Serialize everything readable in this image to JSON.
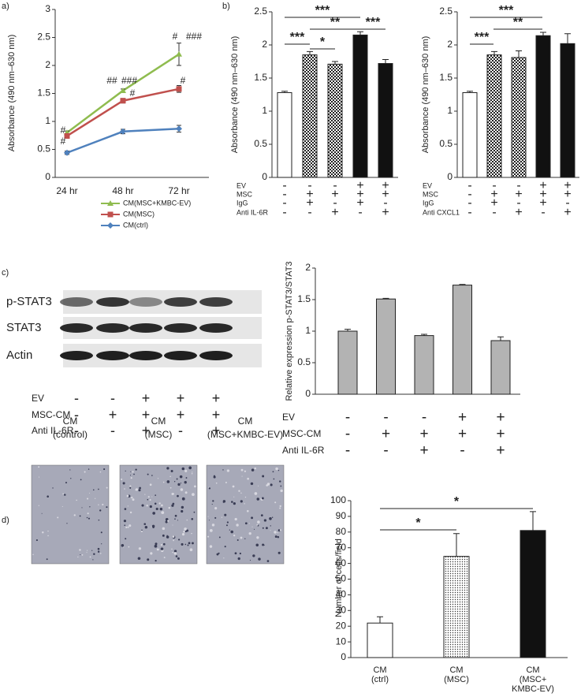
{
  "panels": [
    "a)",
    "b)",
    "c)",
    "d)"
  ],
  "chart_data": [
    {
      "type": "line",
      "categories": [
        "24 hr",
        "48 hr",
        "72 hr"
      ],
      "y_label": "Absorbance (490 nm–630 nm)",
      "ylim": [
        0,
        3
      ],
      "yticks": [
        0,
        0.5,
        1,
        1.5,
        2,
        2.5,
        3
      ],
      "series": [
        {
          "name": "CM(MSC+KMBC-EV)",
          "color": "#8fbc4f",
          "marker": "triangle",
          "values": [
            0.8,
            1.55,
            2.2
          ],
          "errors": [
            0.03,
            0.03,
            0.2
          ]
        },
        {
          "name": "CM(MSC)",
          "color": "#c0504d",
          "marker": "square",
          "values": [
            0.74,
            1.37,
            1.58
          ],
          "errors": [
            0.03,
            0.04,
            0.06
          ]
        },
        {
          "name": "CM(ctrl)",
          "color": "#4f81bd",
          "marker": "diamond",
          "values": [
            0.44,
            0.82,
            0.87
          ],
          "errors": [
            0.03,
            0.04,
            0.06
          ]
        }
      ],
      "annotations": [
        "#",
        "#",
        "##",
        "###",
        "#",
        "#",
        "###",
        "#"
      ]
    },
    {
      "type": "bar",
      "y_label": "Absorbance (490 nm–630 nm)",
      "ylim": [
        0,
        2.5
      ],
      "yticks": [
        0,
        0.5,
        1,
        1.5,
        2,
        2.5
      ],
      "values": [
        1.28,
        1.85,
        1.71,
        2.15,
        1.72
      ],
      "errors": [
        0.02,
        0.05,
        0.04,
        0.05,
        0.06
      ],
      "fills": [
        "white",
        "checker",
        "checker",
        "black",
        "black"
      ],
      "annotations": [
        "***",
        "**",
        "***",
        "***",
        "*"
      ],
      "conditions": [
        {
          "name": "EV",
          "signs": [
            "-",
            "-",
            "-",
            "+",
            "+"
          ]
        },
        {
          "name": "MSC",
          "signs": [
            "-",
            "+",
            "+",
            "+",
            "+"
          ]
        },
        {
          "name": "IgG",
          "signs": [
            "-",
            "+",
            "-",
            "+",
            "-"
          ]
        },
        {
          "name": "Anti IL-6R",
          "signs": [
            "-",
            "-",
            "+",
            "-",
            "+"
          ]
        }
      ]
    },
    {
      "type": "bar",
      "y_label": "Absorbance (490 nm–630 nm)",
      "ylim": [
        0,
        2.5
      ],
      "yticks": [
        0,
        0.5,
        1,
        1.5,
        2,
        2.5
      ],
      "values": [
        1.28,
        1.85,
        1.81,
        2.14,
        2.02
      ],
      "errors": [
        0.02,
        0.05,
        0.1,
        0.05,
        0.15
      ],
      "fills": [
        "white",
        "checker",
        "checker",
        "black",
        "black"
      ],
      "annotations": [
        "***",
        "**",
        "***"
      ],
      "conditions": [
        {
          "name": "EV",
          "signs": [
            "-",
            "-",
            "-",
            "+",
            "+"
          ]
        },
        {
          "name": "MSC",
          "signs": [
            "-",
            "+",
            "+",
            "+",
            "+"
          ]
        },
        {
          "name": "IgG",
          "signs": [
            "-",
            "+",
            "-",
            "+",
            "-"
          ]
        },
        {
          "name": "Anti CXCL1",
          "signs": [
            "-",
            "-",
            "+",
            "-",
            "+"
          ]
        }
      ]
    },
    {
      "type": "bar",
      "y_label": "Relative expression p-STAT3/STAT3",
      "ylim": [
        0,
        2
      ],
      "yticks": [
        0,
        0.5,
        1,
        1.5,
        2
      ],
      "values": [
        1.0,
        1.51,
        0.93,
        1.73,
        0.85
      ],
      "errors": [
        0.03,
        0.01,
        0.02,
        0.01,
        0.06
      ],
      "color": "#b3b3b3",
      "conditions": [
        {
          "name": "EV",
          "signs": [
            "-",
            "-",
            "-",
            "+",
            "+"
          ]
        },
        {
          "name": "MSC-CM",
          "signs": [
            "-",
            "+",
            "+",
            "+",
            "+"
          ]
        },
        {
          "name": "Anti IL-6R",
          "signs": [
            "-",
            "-",
            "+",
            "-",
            "+"
          ]
        }
      ]
    },
    {
      "type": "bar",
      "y_label": "Number of cells/field",
      "ylim": [
        0,
        100
      ],
      "yticks": [
        0,
        10,
        20,
        30,
        40,
        50,
        60,
        70,
        80,
        90,
        100
      ],
      "categories": [
        [
          "CM",
          "(ctrl)"
        ],
        [
          "CM",
          "(MSC)"
        ],
        [
          "CM",
          "(MSC+",
          "KMBC-EV)"
        ]
      ],
      "values": [
        22,
        64.5,
        81
      ],
      "errors": [
        4,
        14.5,
        12
      ],
      "fills": [
        "white",
        "dots",
        "black"
      ],
      "annotations": [
        "*",
        "*"
      ]
    }
  ],
  "blot": {
    "rows": [
      "p-STAT3",
      "STAT3",
      "Actin"
    ],
    "conditions": [
      {
        "name": "EV",
        "signs": [
          "-",
          "-",
          "+",
          "+",
          "+"
        ]
      },
      {
        "name": "MSC-CM",
        "signs": [
          "-",
          "+",
          "+",
          "+",
          "+"
        ]
      },
      {
        "name": "Anti IL-6R",
        "signs": [
          "-",
          "-",
          "+",
          "-",
          "+"
        ]
      }
    ]
  },
  "micrographs": {
    "labels": [
      [
        "CM",
        "(control)"
      ],
      [
        "CM",
        "(MSC)"
      ],
      [
        "CM",
        "(MSC+KMBC-EV)"
      ]
    ]
  }
}
